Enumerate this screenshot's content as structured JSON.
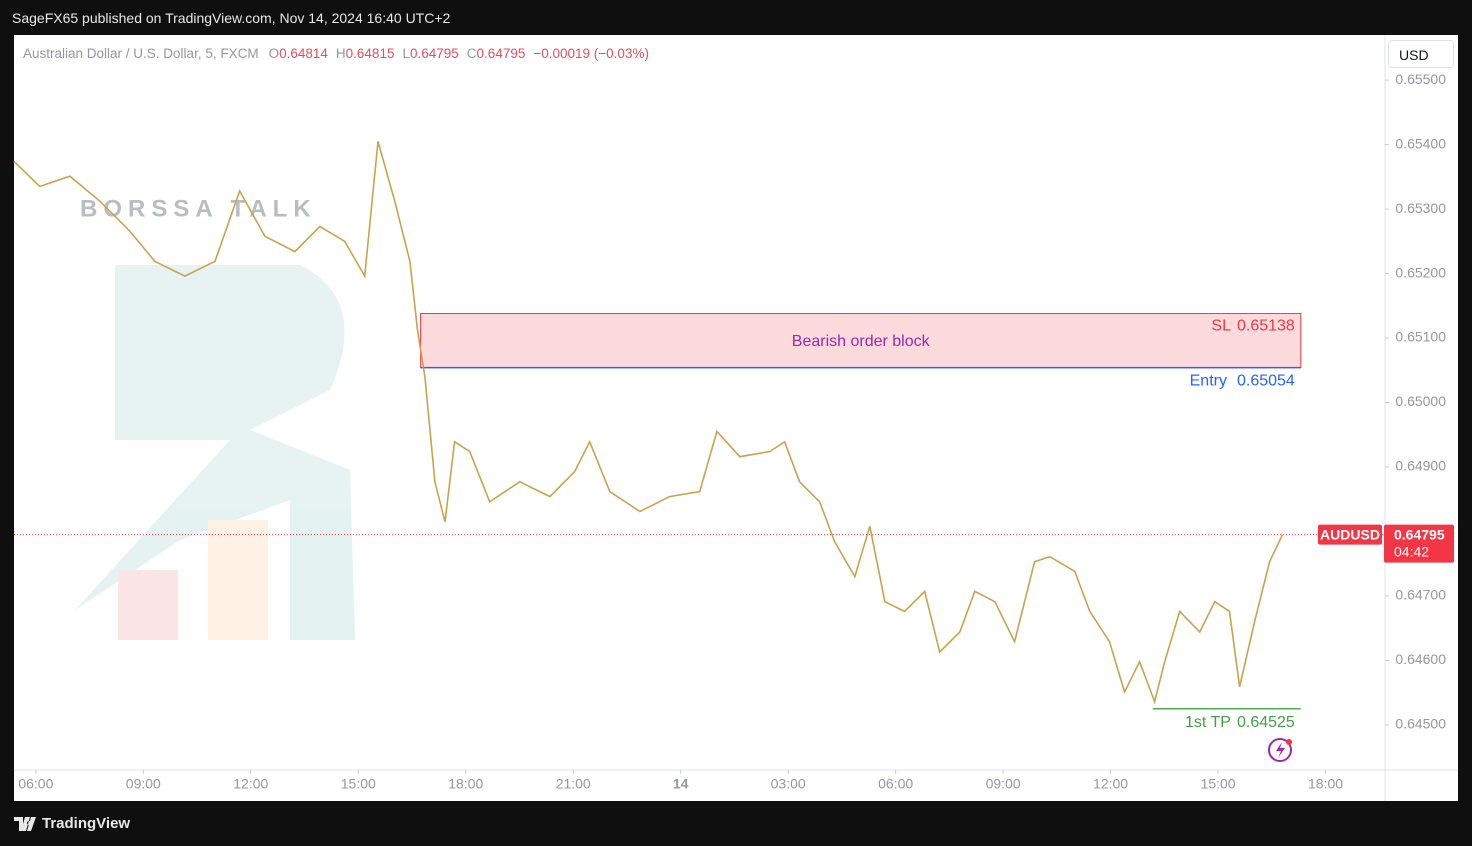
{
  "header": "SageFX65 published on TradingView.com, Nov 14, 2024 16:40 UTC+2",
  "footer": "TradingView",
  "watermark": "BORSSA TALK",
  "currency": "USD",
  "legend": {
    "symbol": "Australian Dollar / U.S. Dollar, 5, FXCM",
    "open_label": "O",
    "open": "0.64814",
    "high_label": "H",
    "high": "0.64815",
    "low_label": "L",
    "low": "0.64795",
    "close_label": "C",
    "close": "0.64795",
    "change": "−0.00019 (−0.03%)"
  },
  "chart_data": {
    "type": "line",
    "color": "#c9a34c",
    "x": [
      5.39,
      6.11,
      6.95,
      7.79,
      8.62,
      9.32,
      10.16,
      11.0,
      11.69,
      12.39,
      13.23,
      13.93,
      14.62,
      15.18,
      15.55,
      16.02,
      16.44,
      16.66,
      16.86,
      17.14,
      17.42,
      17.69,
      18.11,
      18.67,
      19.51,
      20.35,
      21.04,
      21.46,
      22.02,
      22.86,
      23.69,
      24.53,
      25.01,
      25.65,
      26.49,
      26.9,
      27.32,
      27.88,
      28.3,
      28.86,
      29.28,
      29.7,
      30.25,
      30.81,
      31.23,
      31.79,
      32.21,
      32.77,
      33.32,
      33.88,
      34.3,
      35.0,
      35.42,
      35.97,
      36.39,
      36.81,
      37.23,
      37.51,
      37.93,
      38.49,
      38.91,
      39.32,
      39.6,
      40.02,
      40.44,
      40.8
    ],
    "values": [
      0.65374,
      0.65335,
      0.65351,
      0.65312,
      0.65266,
      0.65219,
      0.65196,
      0.65219,
      0.65328,
      0.65258,
      0.65234,
      0.65273,
      0.6525,
      0.65196,
      0.65405,
      0.65312,
      0.65219,
      0.6511,
      0.6504,
      0.64877,
      0.64815,
      0.64939,
      0.64924,
      0.64846,
      0.64877,
      0.64854,
      0.64893,
      0.64939,
      0.64862,
      0.64831,
      0.64854,
      0.64862,
      0.64955,
      0.64916,
      0.64924,
      0.64939,
      0.64877,
      0.64846,
      0.64784,
      0.6473,
      0.64808,
      0.64691,
      0.64676,
      0.64707,
      0.64613,
      0.64644,
      0.64707,
      0.64691,
      0.64629,
      0.64753,
      0.64761,
      0.64738,
      0.64676,
      0.64629,
      0.64551,
      0.64598,
      0.64536,
      0.64598,
      0.64676,
      0.64644,
      0.64691,
      0.64676,
      0.64559,
      0.6466,
      0.64753,
      0.64795
    ],
    "xlim": [
      5.39,
      43.66
    ],
    "xticks": [
      {
        "value": 6,
        "label": "06:00"
      },
      {
        "value": 9,
        "label": "09:00"
      },
      {
        "value": 12,
        "label": "12:00"
      },
      {
        "value": 15,
        "label": "15:00"
      },
      {
        "value": 18,
        "label": "18:00"
      },
      {
        "value": 21,
        "label": "21:00"
      },
      {
        "value": 24,
        "label": "14"
      },
      {
        "value": 27,
        "label": "03:00"
      },
      {
        "value": 30,
        "label": "06:00"
      },
      {
        "value": 33,
        "label": "09:00"
      },
      {
        "value": 36,
        "label": "12:00"
      },
      {
        "value": 39,
        "label": "15:00"
      },
      {
        "value": 42,
        "label": "18:00"
      }
    ],
    "ylim": [
      0.6443,
      0.6557
    ],
    "yticks": [
      {
        "value": 0.645,
        "label": "0.64500"
      },
      {
        "value": 0.646,
        "label": "0.64600"
      },
      {
        "value": 0.647,
        "label": "0.64700"
      },
      {
        "value": 0.648,
        "label": "0.64800"
      },
      {
        "value": 0.649,
        "label": "0.64900"
      },
      {
        "value": 0.65,
        "label": "0.65000"
      },
      {
        "value": 0.651,
        "label": "0.65100"
      },
      {
        "value": 0.652,
        "label": "0.65200"
      },
      {
        "value": 0.653,
        "label": "0.65300"
      },
      {
        "value": 0.654,
        "label": "0.65400"
      },
      {
        "value": 0.655,
        "label": "0.65500"
      }
    ],
    "last": {
      "symbol": "AUDUSD",
      "value": 0.64795,
      "countdown": "04:42",
      "color": "#f23645"
    },
    "order_block": {
      "label": "Bearish order block",
      "x": [
        16.74,
        41.31
      ],
      "sl_label": "SL",
      "sl": 0.65138,
      "entry_label": "Entry",
      "entry": 0.65054
    },
    "target": {
      "label": "1st TP",
      "value": 0.64525,
      "x": [
        37.18,
        41.31
      ]
    }
  }
}
